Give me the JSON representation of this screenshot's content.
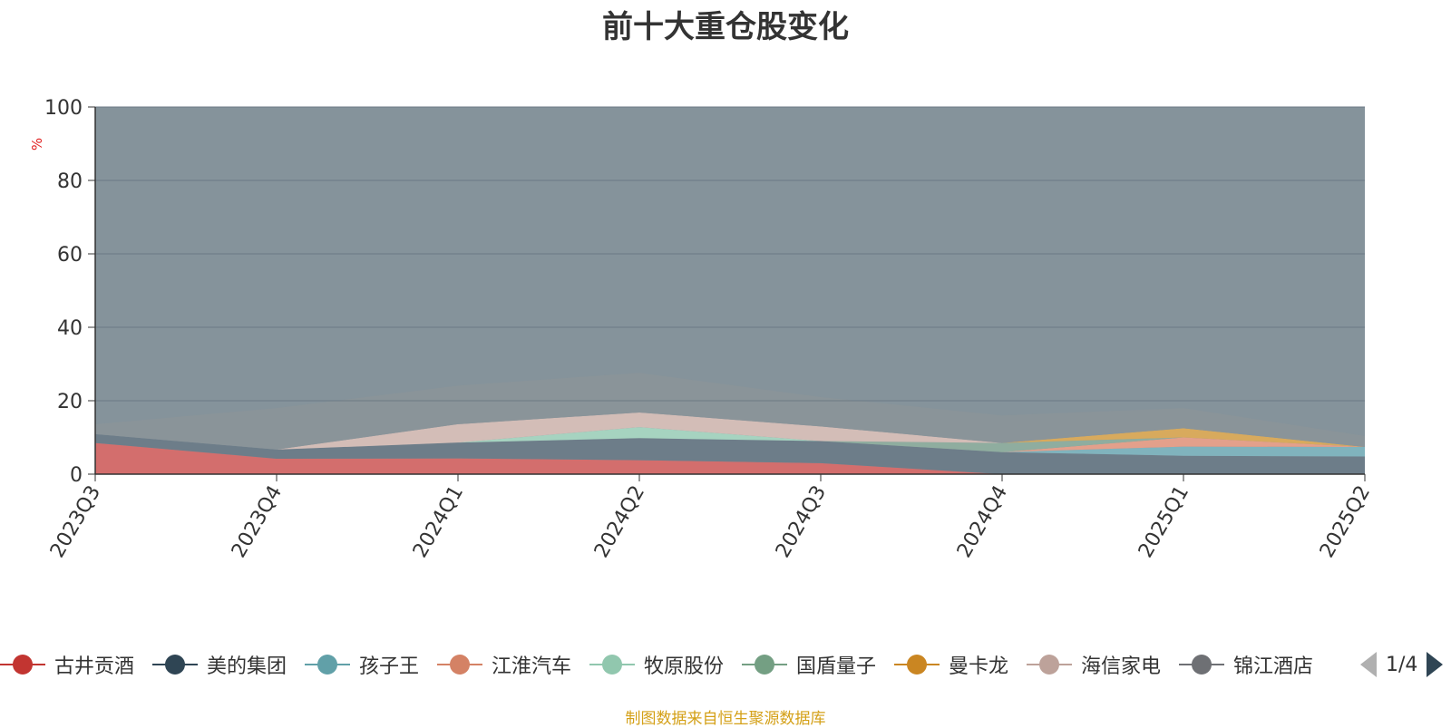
{
  "title": "前十大重仓股变化",
  "source_note": "制图数据来自恒生聚源数据库",
  "legend_page": "1/4",
  "chart_data": {
    "type": "area",
    "stacked": true,
    "title": "前十大重仓股变化",
    "ylabel": "%",
    "ylim": [
      0,
      100
    ],
    "yticks": [
      0,
      20,
      40,
      60,
      80,
      100
    ],
    "grid": true,
    "legend_position": "bottom",
    "x": [
      "2023Q3",
      "2023Q4",
      "2024Q1",
      "2024Q2",
      "2024Q3",
      "2024Q4",
      "2025Q1",
      "2025Q2"
    ],
    "series": [
      {
        "name": "古井贡酒",
        "color": "#d76b6a",
        "values": [
          8.5,
          4.2,
          4.3,
          3.8,
          3.0,
          0.0,
          0.0,
          0.0
        ]
      },
      {
        "name": "美的集团",
        "color": "#6c7b88",
        "values": [
          2.4,
          2.5,
          4.3,
          6.0,
          6.0,
          6.0,
          5.0,
          4.8
        ]
      },
      {
        "name": "孩子王",
        "color": "#7fb4bf",
        "values": [
          0.0,
          0.0,
          0.0,
          0.0,
          0.0,
          0.0,
          2.5,
          2.6
        ]
      },
      {
        "name": "江淮汽车",
        "color": "#e8a08a",
        "values": [
          0.0,
          0.0,
          0.0,
          0.0,
          0.0,
          0.0,
          2.5,
          0.0
        ]
      },
      {
        "name": "牧原股份",
        "color": "#a8d6c2",
        "values": [
          0.0,
          0.0,
          0.0,
          3.0,
          0.0,
          0.0,
          0.0,
          0.0
        ]
      },
      {
        "name": "国盾量子",
        "color": "#8fae9f",
        "values": [
          0.0,
          0.0,
          0.0,
          0.0,
          0.0,
          2.5,
          0.0,
          0.0
        ]
      },
      {
        "name": "曼卡龙",
        "color": "#dcab5a",
        "values": [
          0.0,
          0.0,
          0.0,
          0.0,
          0.0,
          0.0,
          2.5,
          0.0
        ]
      },
      {
        "name": "海信家电",
        "color": "#d7bfb8",
        "values": [
          0.0,
          0.0,
          5.0,
          4.0,
          4.0,
          0.0,
          0.0,
          0.0
        ]
      },
      {
        "name": "锦江酒店",
        "color": "#8a9399",
        "values": [
          2.7,
          11.3,
          10.5,
          10.8,
          8.0,
          7.5,
          5.5,
          3.0
        ]
      }
    ]
  },
  "legend": [
    {
      "name": "古井贡酒",
      "color": "#c23531"
    },
    {
      "name": "美的集团",
      "color": "#2f4554"
    },
    {
      "name": "孩子王",
      "color": "#61a0a8"
    },
    {
      "name": "江淮汽车",
      "color": "#d48265"
    },
    {
      "name": "牧原股份",
      "color": "#91c7ae"
    },
    {
      "name": "国盾量子",
      "color": "#749f83"
    },
    {
      "name": "曼卡龙",
      "color": "#ca8622"
    },
    {
      "name": "海信家电",
      "color": "#bda29a"
    },
    {
      "name": "锦江酒店",
      "color": "#6e7074"
    }
  ]
}
